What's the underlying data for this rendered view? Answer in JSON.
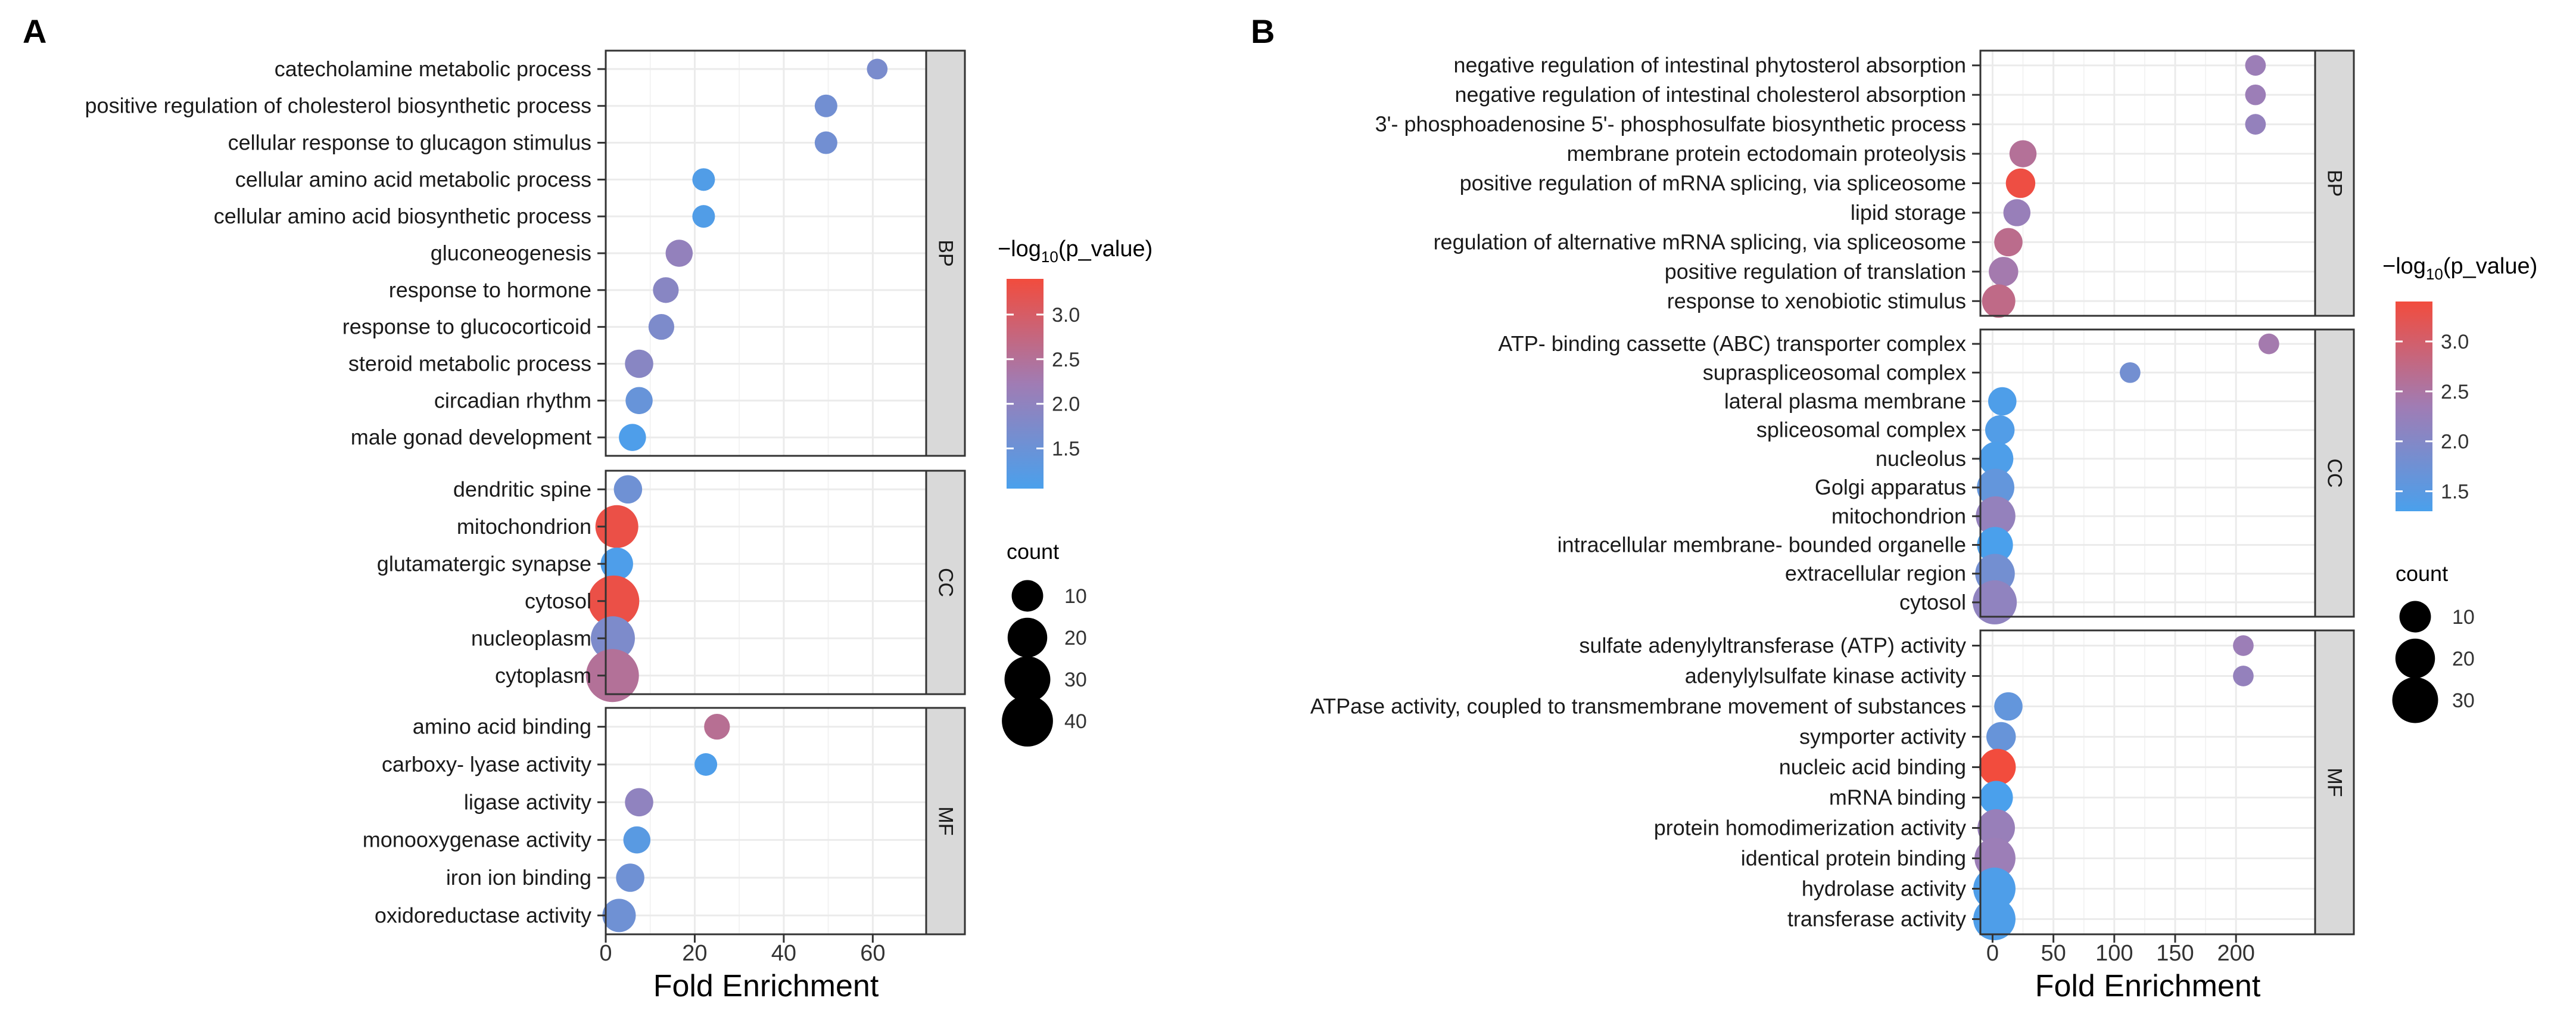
{
  "figure": {
    "panel_a_label": "A",
    "panel_b_label": "B"
  },
  "colors": {
    "low": "#4aa0ec",
    "mid": "#a07cb4",
    "high": "#f24c3d",
    "strip": "#d9d9d9",
    "grid": "#ebebeb"
  },
  "chart_data": [
    {
      "type": "scatter",
      "panel": "A",
      "xlabel": "Fold Enrichment",
      "xlim": [
        0,
        72
      ],
      "xticks": [
        0,
        20,
        40,
        60
      ],
      "color_label": "−log10(p_value)",
      "color_range": [
        1.05,
        3.4
      ],
      "color_ticks": [
        "1.5",
        "2.0",
        "2.5",
        "3.0"
      ],
      "size_label": "count",
      "size_legend": [
        10,
        20,
        30,
        40
      ],
      "facets": [
        {
          "name": "BP",
          "terms": [
            {
              "term": "catecholamine metabolic process",
              "x": 61,
              "count": 2,
              "p": 1.7
            },
            {
              "term": "positive regulation of cholesterol biosynthetic process",
              "x": 49.5,
              "count": 3,
              "p": 1.6
            },
            {
              "term": "cellular response to glucagon stimulus",
              "x": 49.5,
              "count": 3,
              "p": 1.6
            },
            {
              "term": "cellular amino acid metabolic process",
              "x": 22,
              "count": 3,
              "p": 1.15
            },
            {
              "term": "cellular amino acid biosynthetic process",
              "x": 22,
              "count": 3,
              "p": 1.15
            },
            {
              "term": "gluconeogenesis",
              "x": 16.5,
              "count": 6,
              "p": 2.05
            },
            {
              "term": "response to hormone",
              "x": 13.5,
              "count": 5,
              "p": 1.9
            },
            {
              "term": "response to glucocorticoid",
              "x": 12.5,
              "count": 5,
              "p": 1.75
            },
            {
              "term": "steroid metabolic process",
              "x": 7.5,
              "count": 7,
              "p": 1.9
            },
            {
              "term": "circadian rhythm",
              "x": 7.5,
              "count": 6,
              "p": 1.45
            },
            {
              "term": "male gonad development",
              "x": 6,
              "count": 6,
              "p": 1.1
            }
          ]
        },
        {
          "name": "CC",
          "terms": [
            {
              "term": "dendritic spine",
              "x": 5,
              "count": 7,
              "p": 1.55
            },
            {
              "term": "mitochondrion",
              "x": 2.5,
              "count": 25,
              "p": 3.3
            },
            {
              "term": "glutamatergic synapse",
              "x": 2.5,
              "count": 11,
              "p": 1.1
            },
            {
              "term": "cytosol",
              "x": 1.8,
              "count": 40,
              "p": 3.3
            },
            {
              "term": "nucleoplasm",
              "x": 1.6,
              "count": 27,
              "p": 1.75
            },
            {
              "term": "cytoplasm",
              "x": 1.5,
              "count": 44,
              "p": 2.5
            }
          ]
        },
        {
          "name": "MF",
          "terms": [
            {
              "term": "amino acid binding",
              "x": 25,
              "count": 5,
              "p": 2.55
            },
            {
              "term": "carboxy- lyase activity",
              "x": 22.5,
              "count": 3,
              "p": 1.1
            },
            {
              "term": "ligase activity",
              "x": 7.5,
              "count": 7,
              "p": 2.0
            },
            {
              "term": "monooxygenase activity",
              "x": 7,
              "count": 6,
              "p": 1.25
            },
            {
              "term": "iron ion binding",
              "x": 5.5,
              "count": 7,
              "p": 1.55
            },
            {
              "term": "oxidoreductase activity",
              "x": 3,
              "count": 12,
              "p": 1.55
            }
          ]
        }
      ]
    },
    {
      "type": "scatter",
      "panel": "B",
      "xlabel": "Fold Enrichment",
      "xlim": [
        -10,
        265
      ],
      "xticks": [
        0,
        50,
        100,
        150,
        200
      ],
      "color_label": "−log10(p_value)",
      "color_range": [
        1.3,
        3.4
      ],
      "color_ticks": [
        "1.5",
        "2.0",
        "2.5",
        "3.0"
      ],
      "size_label": "count",
      "size_legend": [
        10,
        20,
        30
      ],
      "facets": [
        {
          "name": "BP",
          "terms": [
            {
              "term": "negative regulation of intestinal phytosterol absorption",
              "x": 216,
              "count": 2,
              "p": 2.3
            },
            {
              "term": "negative regulation of intestinal cholesterol absorption",
              "x": 216,
              "count": 2,
              "p": 2.3
            },
            {
              "term": "3'- phosphoadenosine 5'- phosphosulfate biosynthetic process",
              "x": 216,
              "count": 2,
              "p": 2.2
            },
            {
              "term": "membrane protein ectodomain proteolysis",
              "x": 25,
              "count": 6,
              "p": 2.6
            },
            {
              "term": "positive regulation of mRNA splicing, via spliceosome",
              "x": 23,
              "count": 8,
              "p": 3.35
            },
            {
              "term": "lipid storage",
              "x": 20,
              "count": 6,
              "p": 2.25
            },
            {
              "term": "regulation of alternative mRNA splicing, via spliceosome",
              "x": 13,
              "count": 7,
              "p": 2.7
            },
            {
              "term": "positive regulation of translation",
              "x": 9,
              "count": 8,
              "p": 2.4
            },
            {
              "term": "response to xenobiotic stimulus",
              "x": 5,
              "count": 12,
              "p": 2.75
            }
          ]
        },
        {
          "name": "CC",
          "terms": [
            {
              "term": "ATP- binding cassette (ABC) transporter complex",
              "x": 227,
              "count": 2,
              "p": 2.4
            },
            {
              "term": "supraspliceosomal complex",
              "x": 113,
              "count": 2,
              "p": 1.8
            },
            {
              "term": "lateral plasma membrane",
              "x": 8,
              "count": 7,
              "p": 1.35
            },
            {
              "term": "spliceosomal complex",
              "x": 6,
              "count": 8,
              "p": 1.4
            },
            {
              "term": "nucleolus",
              "x": 3,
              "count": 13,
              "p": 1.35
            },
            {
              "term": "Golgi apparatus",
              "x": 2.5,
              "count": 17,
              "p": 1.6
            },
            {
              "term": "mitochondrion",
              "x": 2.5,
              "count": 20,
              "p": 2.2
            },
            {
              "term": "intracellular membrane- bounded organelle",
              "x": 2,
              "count": 15,
              "p": 1.3
            },
            {
              "term": "extracellular region",
              "x": 2,
              "count": 20,
              "p": 1.8
            },
            {
              "term": "cytosol",
              "x": 1.8,
              "count": 27,
              "p": 2.15
            }
          ]
        },
        {
          "name": "MF",
          "terms": [
            {
              "term": "sulfate adenylyltransferase (ATP) activity",
              "x": 206,
              "count": 2,
              "p": 2.3
            },
            {
              "term": "adenylylsulfate kinase activity",
              "x": 206,
              "count": 2,
              "p": 2.2
            },
            {
              "term": "ATPase activity, coupled to transmembrane movement of substances",
              "x": 13,
              "count": 7,
              "p": 1.6
            },
            {
              "term": "symporter activity",
              "x": 7,
              "count": 8,
              "p": 1.65
            },
            {
              "term": "nucleic acid binding",
              "x": 4,
              "count": 16,
              "p": 3.45
            },
            {
              "term": "mRNA binding",
              "x": 3,
              "count": 12,
              "p": 1.3
            },
            {
              "term": "protein homodimerization activity",
              "x": 3,
              "count": 17,
              "p": 2.25
            },
            {
              "term": "identical protein binding",
              "x": 2,
              "count": 22,
              "p": 2.3
            },
            {
              "term": "hydrolase activity",
              "x": 1.5,
              "count": 24,
              "p": 1.35
            },
            {
              "term": "transferase activity",
              "x": 1.5,
              "count": 24,
              "p": 1.35
            }
          ]
        }
      ]
    }
  ]
}
